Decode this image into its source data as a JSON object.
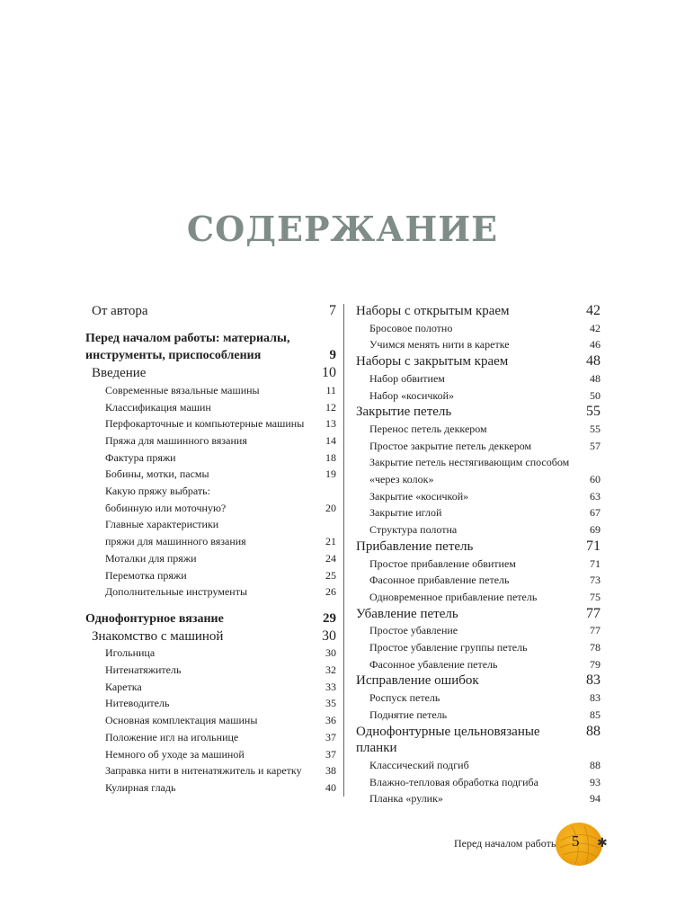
{
  "title": "СОДЕРЖАНИЕ",
  "toc": {
    "left": [
      {
        "level": 1,
        "lines": [
          "От автора"
        ],
        "page": "7"
      },
      {
        "level": 0,
        "lines": [
          "Перед началом работы: материалы,",
          "инструменты, приспособления"
        ],
        "page": "9"
      },
      {
        "level": 1,
        "lines": [
          "Введение"
        ],
        "page": "10"
      },
      {
        "level": 2,
        "lines": [
          "Современные вязальные машины"
        ],
        "page": "11"
      },
      {
        "level": 2,
        "lines": [
          "Классификация машин"
        ],
        "page": "12"
      },
      {
        "level": 2,
        "lines": [
          "Перфокарточные и компьютерные машины"
        ],
        "page": "13"
      },
      {
        "level": 2,
        "lines": [
          "Пряжа для машинного вязания"
        ],
        "page": "14"
      },
      {
        "level": 2,
        "lines": [
          "Фактура пряжи"
        ],
        "page": "18"
      },
      {
        "level": 2,
        "lines": [
          "Бобины, мотки, пасмы"
        ],
        "page": "19"
      },
      {
        "level": 2,
        "lines": [
          "Какую пряжу выбрать:",
          "бобинную или моточную?"
        ],
        "page": "20"
      },
      {
        "level": 2,
        "lines": [
          "Главные характеристики",
          "пряжи для машинного вязания"
        ],
        "page": "21"
      },
      {
        "level": 2,
        "lines": [
          "Моталки для пряжи"
        ],
        "page": "24"
      },
      {
        "level": 2,
        "lines": [
          "Перемотка пряжи"
        ],
        "page": "25"
      },
      {
        "level": 2,
        "lines": [
          "Дополнительные инструменты"
        ],
        "page": "26"
      },
      {
        "level": 0,
        "lines": [
          "Однофонтурное вязание"
        ],
        "page": "29"
      },
      {
        "level": 1,
        "lines": [
          "Знакомство с машиной"
        ],
        "page": "30"
      },
      {
        "level": 2,
        "lines": [
          "Игольница"
        ],
        "page": "30"
      },
      {
        "level": 2,
        "lines": [
          "Нитенатяжитель"
        ],
        "page": "32"
      },
      {
        "level": 2,
        "lines": [
          "Каретка"
        ],
        "page": "33"
      },
      {
        "level": 2,
        "lines": [
          "Нитеводитель"
        ],
        "page": "35"
      },
      {
        "level": 2,
        "lines": [
          "Основная комплектация машины"
        ],
        "page": "36"
      },
      {
        "level": 2,
        "lines": [
          "Положение игл на игольнице"
        ],
        "page": "37"
      },
      {
        "level": 2,
        "lines": [
          "Немного об уходе за машиной"
        ],
        "page": "37"
      },
      {
        "level": 2,
        "lines": [
          "Заправка нити в нитенатяжитель и каретку"
        ],
        "page": "38"
      },
      {
        "level": 2,
        "lines": [
          "Кулирная гладь"
        ],
        "page": "40"
      }
    ],
    "right": [
      {
        "level": 1,
        "lines": [
          "Наборы с открытым краем"
        ],
        "page": "42"
      },
      {
        "level": 2,
        "lines": [
          "Бросовое полотно"
        ],
        "page": "42"
      },
      {
        "level": 2,
        "lines": [
          "Учимся менять нити в каретке"
        ],
        "page": "46"
      },
      {
        "level": 1,
        "lines": [
          "Наборы с закрытым краем"
        ],
        "page": "48"
      },
      {
        "level": 2,
        "lines": [
          "Набор обвитием"
        ],
        "page": "48"
      },
      {
        "level": 2,
        "lines": [
          "Набор «косичкой»"
        ],
        "page": "50"
      },
      {
        "level": 1,
        "lines": [
          "Закрытие петель"
        ],
        "page": "55"
      },
      {
        "level": 2,
        "lines": [
          "Перенос петель деккером"
        ],
        "page": "55"
      },
      {
        "level": 2,
        "lines": [
          "Простое закрытие петель деккером"
        ],
        "page": "57"
      },
      {
        "level": 2,
        "lines": [
          "Закрытие петель нестягивающим способом",
          "«через колок»"
        ],
        "page": "60"
      },
      {
        "level": 2,
        "lines": [
          "Закрытие «косичкой»"
        ],
        "page": "63"
      },
      {
        "level": 2,
        "lines": [
          "Закрытие иглой"
        ],
        "page": "67"
      },
      {
        "level": 2,
        "lines": [
          "Структура полотна"
        ],
        "page": "69"
      },
      {
        "level": 1,
        "lines": [
          "Прибавление петель"
        ],
        "page": "71"
      },
      {
        "level": 2,
        "lines": [
          "Простое прибавление обвитием"
        ],
        "page": "71"
      },
      {
        "level": 2,
        "lines": [
          "Фасонное прибавление петель"
        ],
        "page": "73"
      },
      {
        "level": 2,
        "lines": [
          "Одновременное прибавление петель"
        ],
        "page": "75"
      },
      {
        "level": 1,
        "lines": [
          "Убавление петель"
        ],
        "page": "77"
      },
      {
        "level": 2,
        "lines": [
          "Простое убавление"
        ],
        "page": "77"
      },
      {
        "level": 2,
        "lines": [
          "Простое убавление группы петель"
        ],
        "page": "78"
      },
      {
        "level": 2,
        "lines": [
          "Фасонное убавление петель"
        ],
        "page": "79"
      },
      {
        "level": 1,
        "lines": [
          "Исправление ошибок"
        ],
        "page": "83"
      },
      {
        "level": 2,
        "lines": [
          "Роспуск петель"
        ],
        "page": "83"
      },
      {
        "level": 2,
        "lines": [
          "Поднятие петель"
        ],
        "page": "85"
      },
      {
        "level": 1,
        "lines": [
          "Однофонтурные цельновязаные планки"
        ],
        "page": "88"
      },
      {
        "level": 2,
        "lines": [
          "Классический подгиб"
        ],
        "page": "88"
      },
      {
        "level": 2,
        "lines": [
          "Влажно-тепловая обработка подгиба"
        ],
        "page": "93"
      },
      {
        "level": 2,
        "lines": [
          "Планка «рулик»"
        ],
        "page": "94"
      }
    ]
  },
  "footer": {
    "section": "Перед началом работы",
    "page_number": "5",
    "decoration": "yarn-ball-icon",
    "title_color": "#7f8c87",
    "ball_color": "#eea312"
  }
}
